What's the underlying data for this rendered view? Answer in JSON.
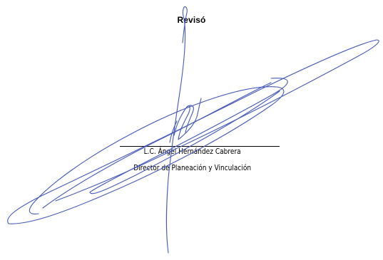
{
  "heading": "Revisó",
  "signer": {
    "name": "L.C. Ángel Hernández Cabrera",
    "title": "Director de Planeación y Vinculación"
  },
  "colors": {
    "ink": "#3a52b8",
    "text": "#000000"
  },
  "icons": [
    "handwritten-signature"
  ]
}
